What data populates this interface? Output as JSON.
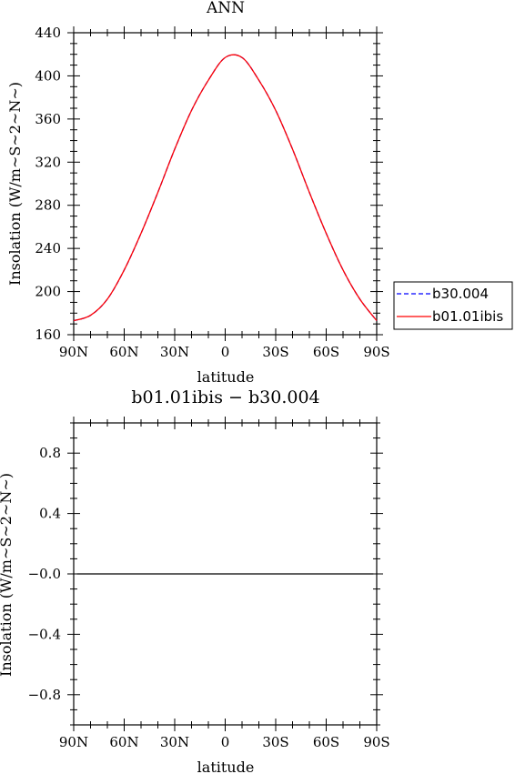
{
  "chart_data": [
    {
      "type": "line",
      "title": "ANN",
      "xlabel": "latitude",
      "ylabel": "Insolation (W/m~S~2~N~)",
      "x": [
        -90,
        -80,
        -70,
        -60,
        -50,
        -40,
        -30,
        -20,
        -10,
        0,
        10,
        20,
        30,
        40,
        50,
        60,
        70,
        80,
        90
      ],
      "xlim": [
        -90,
        90
      ],
      "xtick_values": [
        -90,
        -60,
        -30,
        0,
        30,
        60,
        90
      ],
      "xticks": [
        "90N",
        "60N",
        "30N",
        "0",
        "30S",
        "60S",
        "90S"
      ],
      "ylim": [
        160,
        440
      ],
      "ytick_values": [
        160,
        200,
        240,
        280,
        320,
        360,
        400,
        440
      ],
      "yticks": [
        "160",
        "200",
        "240",
        "280",
        "320",
        "360",
        "400",
        "440"
      ],
      "series": [
        {
          "name": "b30.004",
          "color": "#0000ff",
          "dash": "dashed",
          "values": [
            173,
            178,
            193,
            220,
            254,
            292,
            332,
            368,
            396,
            417,
            417,
            396,
            368,
            332,
            292,
            254,
            220,
            193,
            173
          ]
        },
        {
          "name": "b01.01ibis",
          "color": "#ff0000",
          "dash": "solid",
          "values": [
            173,
            178,
            193,
            220,
            254,
            292,
            332,
            368,
            396,
            417,
            417,
            396,
            368,
            332,
            292,
            254,
            220,
            193,
            173
          ]
        }
      ],
      "legend": "right"
    },
    {
      "type": "line",
      "title": "b01.01ibis − b30.004",
      "xlabel": "latitude",
      "ylabel": "Insolation (W/m~S~2~N~)",
      "x": [
        -88,
        88
      ],
      "xlim": [
        -90,
        90
      ],
      "xtick_values": [
        -90,
        -60,
        -30,
        0,
        30,
        60,
        90
      ],
      "xticks": [
        "90N",
        "60N",
        "30N",
        "0",
        "30S",
        "60S",
        "90S"
      ],
      "ylim": [
        -1.0,
        1.0
      ],
      "ytick_values": [
        -0.8,
        -0.4,
        0.0,
        0.4,
        0.8
      ],
      "yticks": [
        "−0.8",
        "−0.4",
        "−0.0",
        "0.4",
        "0.8"
      ],
      "series": [
        {
          "color": "#000000",
          "dash": "solid",
          "values": [
            0,
            0
          ]
        }
      ]
    }
  ]
}
